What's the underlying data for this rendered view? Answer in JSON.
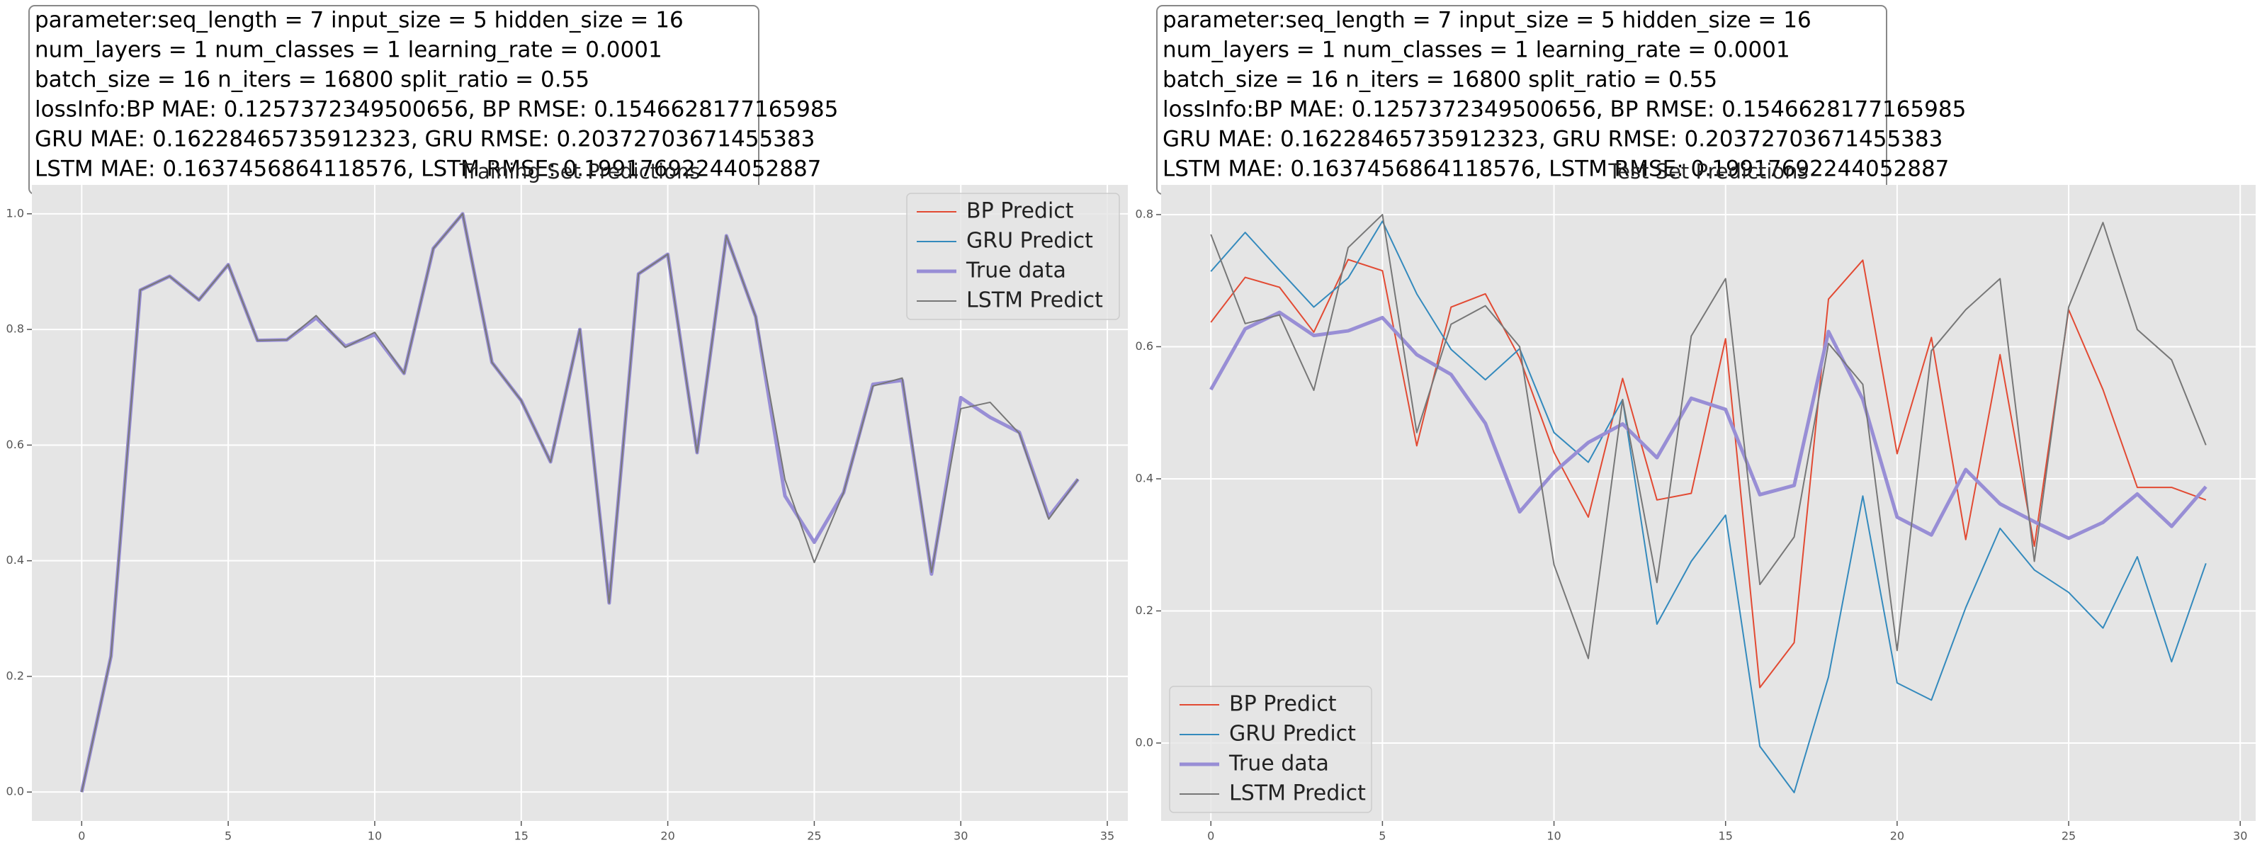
{
  "chart_data": [
    {
      "type": "line",
      "title": "Training Set Predictions",
      "annotation": [
        "parameter:seq_length = 7 input_size = 5 hidden_size = 16",
        "num_layers = 1 num_classes = 1 learning_rate = 0.0001",
        "batch_size = 16 n_iters = 16800 split_ratio = 0.55",
        "lossInfo:BP MAE: 0.1257372349500656, BP RMSE: 0.1546628177165985",
        "GRU MAE: 0.16228465735912323, GRU RMSE: 0.20372703671455383",
        "LSTM MAE: 0.1637456864118576, LSTM RMSE: 0.19917692244052887"
      ],
      "x": [
        0,
        1,
        2,
        3,
        4,
        5,
        6,
        7,
        8,
        9,
        10,
        11,
        12,
        13,
        14,
        15,
        16,
        17,
        18,
        19,
        20,
        21,
        22,
        23,
        24,
        25,
        26,
        27,
        28,
        29,
        30,
        31,
        32,
        33,
        34
      ],
      "series": [
        {
          "name": "BP Predict",
          "color": "#E24A33",
          "width": 1,
          "values": [
            0.0,
            0.235,
            0.868,
            0.892,
            0.851,
            0.912,
            0.781,
            0.782,
            0.82,
            0.771,
            0.791,
            0.724,
            0.94,
            1.0,
            0.743,
            0.677,
            0.571,
            0.8,
            0.327,
            0.896,
            0.93,
            0.587,
            0.962,
            0.822,
            0.512,
            0.432,
            0.518,
            0.705,
            0.712,
            0.377,
            0.682,
            0.648,
            0.622,
            0.476,
            0.541
          ]
        },
        {
          "name": "GRU Predict",
          "color": "#348ABD",
          "width": 1,
          "values": [
            0.0,
            0.235,
            0.868,
            0.892,
            0.851,
            0.912,
            0.781,
            0.782,
            0.822,
            0.771,
            0.792,
            0.724,
            0.94,
            1.0,
            0.743,
            0.677,
            0.571,
            0.8,
            0.327,
            0.896,
            0.93,
            0.587,
            0.962,
            0.822,
            0.512,
            0.432,
            0.518,
            0.705,
            0.713,
            0.377,
            0.682,
            0.648,
            0.622,
            0.476,
            0.541
          ]
        },
        {
          "name": "True data",
          "color": "#988ED5",
          "width": 2.5,
          "values": [
            0.0,
            0.235,
            0.868,
            0.892,
            0.851,
            0.912,
            0.781,
            0.782,
            0.82,
            0.771,
            0.791,
            0.724,
            0.94,
            1.0,
            0.743,
            0.677,
            0.571,
            0.8,
            0.327,
            0.896,
            0.93,
            0.587,
            0.962,
            0.822,
            0.512,
            0.432,
            0.518,
            0.705,
            0.712,
            0.377,
            0.682,
            0.648,
            0.622,
            0.476,
            0.541
          ]
        },
        {
          "name": "LSTM Predict",
          "color": "#777777",
          "width": 1,
          "values": [
            0.0,
            0.235,
            0.868,
            0.892,
            0.851,
            0.912,
            0.781,
            0.782,
            0.824,
            0.769,
            0.795,
            0.724,
            0.94,
            1.0,
            0.743,
            0.677,
            0.571,
            0.8,
            0.327,
            0.896,
            0.93,
            0.587,
            0.962,
            0.822,
            0.54,
            0.397,
            0.518,
            0.702,
            0.716,
            0.38,
            0.663,
            0.674,
            0.62,
            0.472,
            0.541
          ]
        }
      ],
      "xlim": [
        -1.7,
        35.7
      ],
      "ylim": [
        -0.05,
        1.05
      ],
      "xticks": [
        0,
        5,
        10,
        15,
        20,
        25,
        30,
        35
      ],
      "yticks": [
        {
          "value": 0,
          "label": "0.0"
        },
        0.2,
        0.4,
        0.6,
        0.8,
        {
          "value": 1,
          "label": "1.0"
        }
      ],
      "grid": true,
      "legend": "upper right"
    },
    {
      "type": "line",
      "title": "Test Set Predictions",
      "annotation": [
        "parameter:seq_length = 7 input_size = 5 hidden_size = 16",
        "num_layers = 1 num_classes = 1 learning_rate = 0.0001",
        "batch_size = 16 n_iters = 16800 split_ratio = 0.55",
        "lossInfo:BP MAE: 0.1257372349500656, BP RMSE: 0.1546628177165985",
        "GRU MAE: 0.16228465735912323, GRU RMSE: 0.20372703671455383",
        "LSTM MAE: 0.1637456864118576, LSTM RMSE: 0.19917692244052887"
      ],
      "x": [
        0,
        1,
        2,
        3,
        4,
        5,
        6,
        7,
        8,
        9,
        10,
        11,
        12,
        13,
        14,
        15,
        16,
        17,
        18,
        19,
        20,
        21,
        22,
        23,
        24,
        25,
        26,
        27,
        28,
        29
      ],
      "series": [
        {
          "name": "BP Predict",
          "color": "#E24A33",
          "width": 1,
          "values": [
            0.637,
            0.705,
            0.69,
            0.622,
            0.732,
            0.715,
            0.45,
            0.66,
            0.68,
            0.583,
            0.44,
            0.342,
            0.552,
            0.368,
            0.378,
            0.612,
            0.084,
            0.152,
            0.672,
            0.731,
            0.438,
            0.614,
            0.308,
            0.588,
            0.298,
            0.656,
            0.535,
            0.387,
            0.387,
            0.368
          ]
        },
        {
          "name": "GRU Predict",
          "color": "#348ABD",
          "width": 1,
          "values": [
            0.714,
            0.773,
            0.716,
            0.66,
            0.704,
            0.79,
            0.68,
            0.596,
            0.55,
            0.597,
            0.47,
            0.425,
            0.52,
            0.18,
            0.275,
            0.345,
            -0.005,
            -0.075,
            0.1,
            0.374,
            0.091,
            0.065,
            0.205,
            0.325,
            0.262,
            0.228,
            0.174,
            0.282,
            0.123,
            0.272
          ]
        },
        {
          "name": "True data",
          "color": "#988ED5",
          "width": 2.5,
          "values": [
            0.535,
            0.627,
            0.652,
            0.617,
            0.624,
            0.644,
            0.588,
            0.558,
            0.484,
            0.35,
            0.41,
            0.455,
            0.483,
            0.432,
            0.522,
            0.505,
            0.376,
            0.39,
            0.623,
            0.52,
            0.342,
            0.315,
            0.414,
            0.362,
            0.335,
            0.31,
            0.334,
            0.377,
            0.328,
            0.388
          ]
        },
        {
          "name": "LSTM Predict",
          "color": "#777777",
          "width": 1,
          "values": [
            0.77,
            0.635,
            0.648,
            0.534,
            0.75,
            0.8,
            0.47,
            0.634,
            0.662,
            0.6,
            0.27,
            0.128,
            0.52,
            0.243,
            0.616,
            0.703,
            0.24,
            0.312,
            0.605,
            0.543,
            0.14,
            0.594,
            0.656,
            0.703,
            0.275,
            0.66,
            0.788,
            0.626,
            0.58,
            0.451
          ]
        }
      ],
      "xlim": [
        -1.45,
        30.45
      ],
      "ylim": [
        -0.118,
        0.845
      ],
      "xticks": [
        0,
        5,
        10,
        15,
        20,
        25,
        30
      ],
      "yticks": [
        {
          "value": 0,
          "label": "0.0"
        },
        0.2,
        0.4,
        0.6,
        0.8
      ],
      "grid": true,
      "legend": "lower left"
    }
  ]
}
